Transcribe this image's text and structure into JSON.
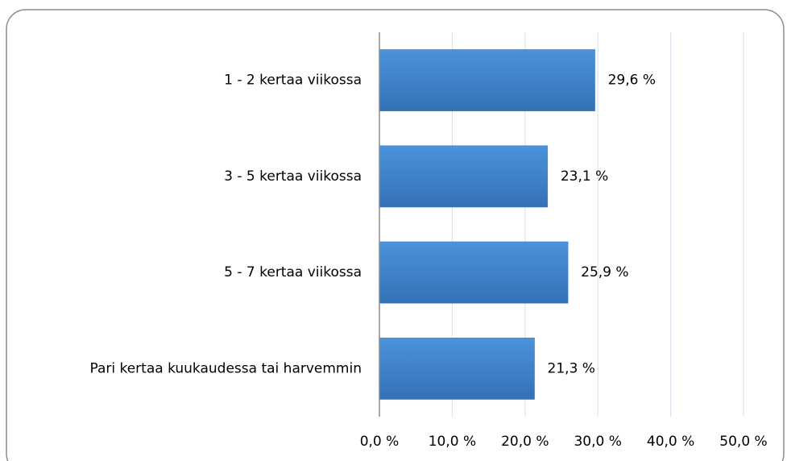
{
  "chart_data": {
    "type": "bar",
    "orientation": "horizontal",
    "categories": [
      "1 - 2 kertaa viikossa",
      "3 - 5 kertaa viikossa",
      "5 - 7 kertaa viikossa",
      "Pari kertaa kuukaudessa tai harvemmin"
    ],
    "values": [
      29.6,
      23.1,
      25.9,
      21.3
    ],
    "value_labels": [
      "29,6 %",
      "23,1 %",
      "25,9 %",
      "21,3 %"
    ],
    "color": "#3f7fc4",
    "xlim": [
      0,
      50
    ],
    "xticks": [
      {
        "value": 0,
        "label": "0,0 %"
      },
      {
        "value": 10,
        "label": "10,0 %"
      },
      {
        "value": 20,
        "label": "20,0 %"
      },
      {
        "value": 30,
        "label": "30,0 %"
      },
      {
        "value": 40,
        "label": "40,0 %"
      },
      {
        "value": 50,
        "label": "50,0 %"
      }
    ],
    "grid": true
  }
}
